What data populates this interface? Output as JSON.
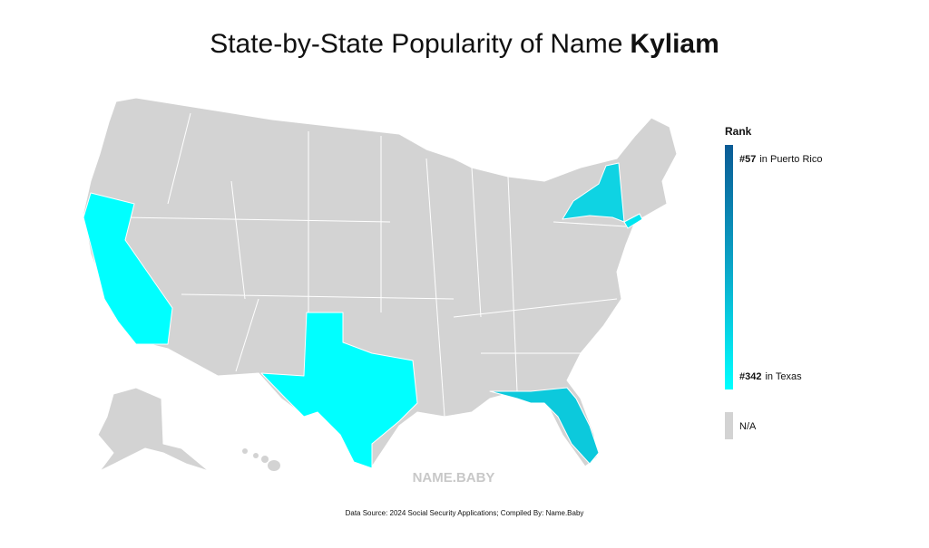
{
  "title": {
    "prefix": "State-by-State Popularity of Name",
    "name": "Kyliam"
  },
  "legend": {
    "title": "Rank",
    "top": {
      "rank": "#57",
      "place": "in Puerto Rico"
    },
    "bottom": {
      "rank": "#342",
      "place": "in Texas"
    },
    "na": "N/A"
  },
  "watermark": "NAME.BABY",
  "footnote": "Data Source: 2024 Social Security Applications; Compiled By: Name.Baby"
}
